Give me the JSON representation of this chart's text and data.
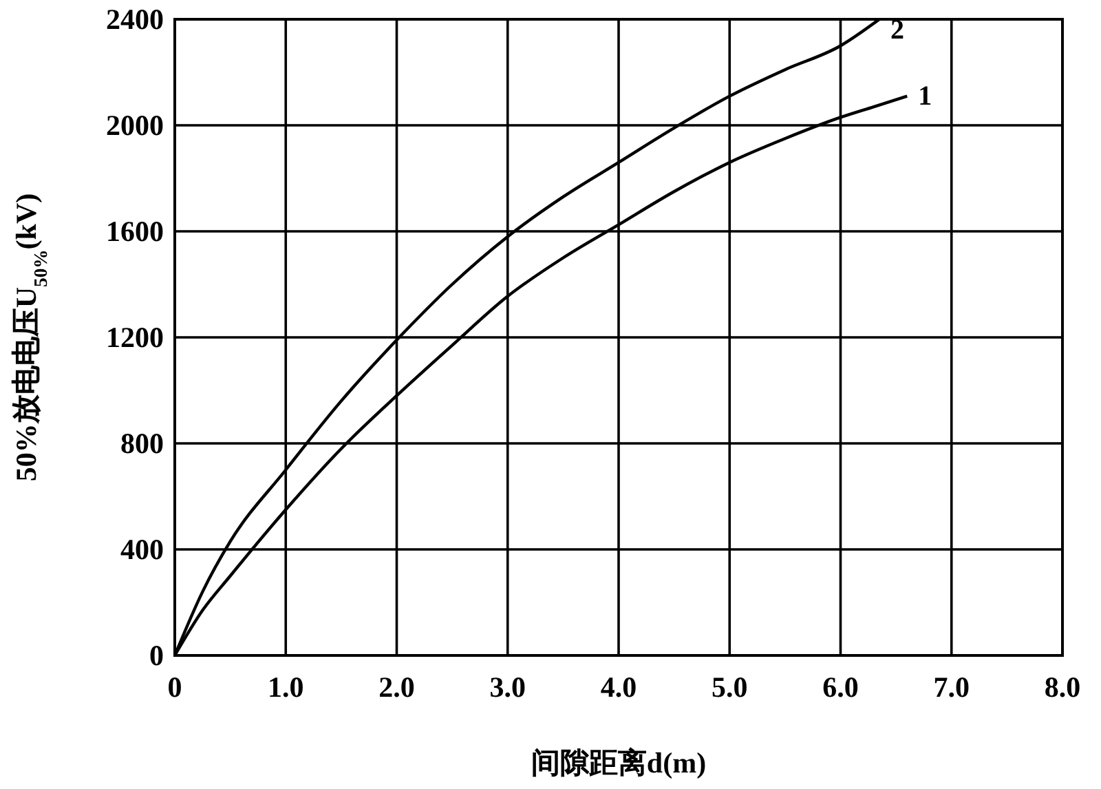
{
  "chart_data": {
    "type": "line",
    "xlabel": "间隙距离d(m)",
    "ylabel": "50%放电电压U$_{50%}$(kV)",
    "xlim": [
      0,
      8
    ],
    "ylim": [
      0,
      2400
    ],
    "xticks": [
      0,
      {
        "value": 1,
        "label": "1.0"
      },
      {
        "value": 2,
        "label": "2.0"
      },
      {
        "value": 3,
        "label": "3.0"
      },
      {
        "value": 4,
        "label": "4.0"
      },
      {
        "value": 5,
        "label": "5.0"
      },
      {
        "value": 6,
        "label": "6.0"
      },
      {
        "value": 7,
        "label": "7.0"
      },
      {
        "value": 8,
        "label": "8.0"
      }
    ],
    "yticks": [
      0,
      400,
      800,
      1200,
      1600,
      2000,
      2400
    ],
    "grid": true,
    "marker": "none",
    "line_style": "solid",
    "series": [
      {
        "name": "1",
        "color": "#000000",
        "x": [
          0,
          0.25,
          0.5,
          1,
          1.5,
          2,
          2.5,
          3,
          3.5,
          4,
          4.5,
          5,
          5.5,
          6,
          6.3,
          6.6
        ],
        "values": [
          0,
          170,
          300,
          550,
          780,
          980,
          1170,
          1355,
          1500,
          1625,
          1750,
          1860,
          1950,
          2030,
          2070,
          2110
        ]
      },
      {
        "name": "2",
        "color": "#000000",
        "x": [
          0,
          0.25,
          0.5,
          1,
          1.5,
          2,
          2.5,
          3,
          3.5,
          4,
          4.5,
          5,
          5.5,
          6,
          6.35
        ],
        "values": [
          0,
          240,
          430,
          700,
          960,
          1190,
          1400,
          1580,
          1730,
          1860,
          1990,
          2110,
          2210,
          2300,
          2400
        ]
      }
    ]
  }
}
